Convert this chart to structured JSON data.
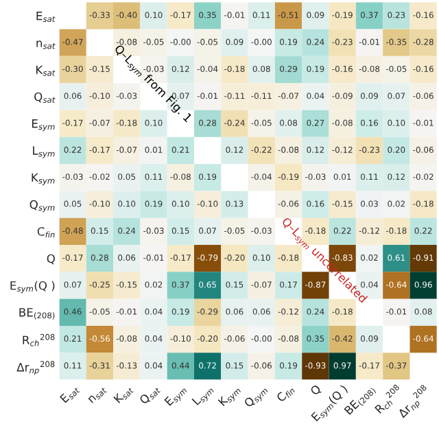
{
  "chart_data": {
    "type": "heatmap",
    "categories": [
      "E$_{sat}$",
      "n$_{sat}$",
      "K$_{sat}$",
      "Q$_{sat}$",
      "E$_{sym}$",
      "L$_{sym}$",
      "K$_{sym}$",
      "Q$_{sym}$",
      "C$_{fin}$",
      "Q",
      "E$_{sym}$(Q )",
      "BE$_{(208)}$",
      "R$_{ch}$$^{208}$",
      "Δr$_{np}$$^{208}$"
    ],
    "y_categories": [
      "E$_{sat}$",
      "n$_{sat}$",
      "K$_{sat}$",
      "Q$_{sat}$",
      "E$_{sym}$",
      "L$_{sym}$",
      "K$_{sym}$",
      "Q$_{sym}$",
      "C$_{fin}$",
      "Q",
      "E$_{sym}$(Q )",
      "BE$_{(208)}$",
      "R$_{ch}$$^{208}$",
      "Δr$_{np}$$^{208}$"
    ],
    "cells": [
      [
        null,
        -0.33,
        -0.4,
        0.1,
        -0.17,
        0.35,
        -0.01,
        0.11,
        -0.51,
        0.09,
        -0.19,
        0.37,
        0.23,
        -0.16
      ],
      [
        -0.47,
        null,
        -0.08,
        -0.05,
        -0.0,
        -0.05,
        0.09,
        -0.0,
        0.19,
        0.24,
        -0.23,
        -0.01,
        -0.35,
        -0.28
      ],
      [
        -0.3,
        -0.15,
        null,
        -0.03,
        0.12,
        -0.04,
        -0.18,
        0.08,
        0.29,
        0.19,
        -0.16,
        -0.08,
        -0.05,
        -0.16
      ],
      [
        0.06,
        -0.1,
        -0.03,
        null,
        0.07,
        -0.01,
        -0.11,
        -0.11,
        -0.07,
        0.04,
        -0.09,
        0.09,
        0.07,
        -0.06
      ],
      [
        -0.17,
        -0.07,
        -0.18,
        0.1,
        null,
        0.28,
        -0.24,
        -0.05,
        0.08,
        0.27,
        -0.08,
        0.16,
        0.1,
        -0.01
      ],
      [
        0.22,
        -0.17,
        -0.07,
        0.01,
        0.21,
        null,
        0.12,
        -0.22,
        -0.08,
        0.12,
        -0.12,
        -0.23,
        0.2,
        -0.06
      ],
      [
        -0.03,
        -0.02,
        0.05,
        0.11,
        -0.08,
        0.19,
        null,
        -0.04,
        -0.19,
        -0.03,
        0.01,
        0.11,
        0.12,
        -0.02
      ],
      [
        0.05,
        -0.1,
        0.1,
        0.19,
        0.1,
        -0.1,
        0.13,
        null,
        -0.06,
        0.16,
        -0.15,
        0.03,
        0.02,
        -0.18
      ],
      [
        -0.48,
        0.15,
        0.24,
        -0.03,
        0.15,
        0.07,
        -0.05,
        -0.03,
        null,
        -0.18,
        0.22,
        -0.12,
        -0.18,
        0.22
      ],
      [
        -0.17,
        0.28,
        0.06,
        -0.01,
        -0.17,
        -0.79,
        -0.2,
        0.1,
        -0.18,
        null,
        -0.83,
        0.02,
        0.61,
        -0.91
      ],
      [
        0.07,
        -0.25,
        -0.15,
        0.02,
        0.37,
        0.65,
        0.15,
        -0.07,
        0.17,
        -0.87,
        null,
        0.04,
        -0.64,
        0.96
      ],
      [
        0.46,
        -0.05,
        -0.01,
        0.04,
        0.19,
        -0.29,
        0.06,
        0.06,
        -0.12,
        0.24,
        -0.18,
        null,
        -0.01,
        0.08
      ],
      [
        0.21,
        -0.56,
        -0.08,
        0.04,
        -0.1,
        -0.2,
        -0.06,
        -0.0,
        -0.08,
        0.35,
        -0.42,
        0.09,
        null,
        -0.64
      ],
      [
        0.11,
        -0.31,
        -0.13,
        0.04,
        0.44,
        0.72,
        0.15,
        -0.06,
        0.19,
        -0.93,
        0.97,
        -0.17,
        -0.37,
        null
      ]
    ],
    "cell_labels": [
      [
        null,
        "-0.33",
        "-0.40",
        "0.10",
        "-0.17",
        "0.35",
        "-0.01",
        "0.11",
        "-0.51",
        "0.09",
        "-0.19",
        "0.37",
        "0.23",
        "-0.16"
      ],
      [
        "-0.47",
        null,
        "-0.08",
        "-0.05",
        "-0.00",
        "-0.05",
        "0.09",
        "-0.00",
        "0.19",
        "0.24",
        "-0.23",
        "-0.01",
        "-0.35",
        "-0.28"
      ],
      [
        "-0.30",
        "-0.15",
        null,
        "-0.03",
        "0.12",
        "-0.04",
        "-0.18",
        "0.08",
        "0.29",
        "0.19",
        "-0.16",
        "-0.08",
        "-0.05",
        "-0.16"
      ],
      [
        "0.06",
        "-0.10",
        "-0.03",
        null,
        "0.07",
        "-0.01",
        "-0.11",
        "-0.11",
        "-0.07",
        "0.04",
        "-0.09",
        "0.09",
        "0.07",
        "-0.06"
      ],
      [
        "-0.17",
        "-0.07",
        "-0.18",
        "0.10",
        null,
        "0.28",
        "-0.24",
        "-0.05",
        "0.08",
        "0.27",
        "-0.08",
        "0.16",
        "0.10",
        "-0.01"
      ],
      [
        "0.22",
        "-0.17",
        "-0.07",
        "0.01",
        "0.21",
        null,
        "0.12",
        "-0.22",
        "-0.08",
        "0.12",
        "-0.12",
        "-0.23",
        "0.20",
        "-0.06"
      ],
      [
        "-0.03",
        "-0.02",
        "0.05",
        "0.11",
        "-0.08",
        "0.19",
        null,
        "-0.04",
        "-0.19",
        "-0.03",
        "0.01",
        "0.11",
        "0.12",
        "-0.02"
      ],
      [
        "0.05",
        "-0.10",
        "0.10",
        "0.19",
        "0.10",
        "-0.10",
        "0.13",
        null,
        "-0.06",
        "0.16",
        "-0.15",
        "0.03",
        "0.02",
        "-0.18"
      ],
      [
        "-0.48",
        "0.15",
        "0.24",
        "-0.03",
        "0.15",
        "0.07",
        "-0.05",
        "-0.03",
        null,
        "-0.18",
        "0.22",
        "-0.12",
        "-0.18",
        "0.22"
      ],
      [
        "-0.17",
        "0.28",
        "0.06",
        "-0.01",
        "-0.17",
        "-0.79",
        "-0.20",
        "0.10",
        "-0.18",
        null,
        "-0.83",
        "0.02",
        "0.61",
        "-0.91"
      ],
      [
        "0.07",
        "-0.25",
        "-0.15",
        "0.02",
        "0.37",
        "0.65",
        "0.15",
        "-0.07",
        "0.17",
        "-0.87",
        null,
        "0.04",
        "-0.64",
        "0.96"
      ],
      [
        "0.46",
        "-0.05",
        "-0.01",
        "0.04",
        "0.19",
        "-0.29",
        "0.06",
        "0.06",
        "-0.12",
        "0.24",
        "-0.18",
        null,
        "-0.01",
        "0.08"
      ],
      [
        "0.21",
        "-0.56",
        "-0.08",
        "0.04",
        "-0.10",
        "-0.20",
        "-0.06",
        "-0.00",
        "-0.08",
        "0.35",
        "-0.42",
        "0.09",
        null,
        "-0.64"
      ],
      [
        "0.11",
        "-0.31",
        "-0.13",
        "0.04",
        "0.44",
        "0.72",
        "0.15",
        "-0.06",
        "0.19",
        "-0.93",
        "0.97",
        "-0.17",
        "-0.37",
        null
      ]
    ],
    "annotations": [
      "Q–L$_{sym}$ from Fig. 1",
      "Q–L$_{sym}$ uncorrelated"
    ]
  }
}
